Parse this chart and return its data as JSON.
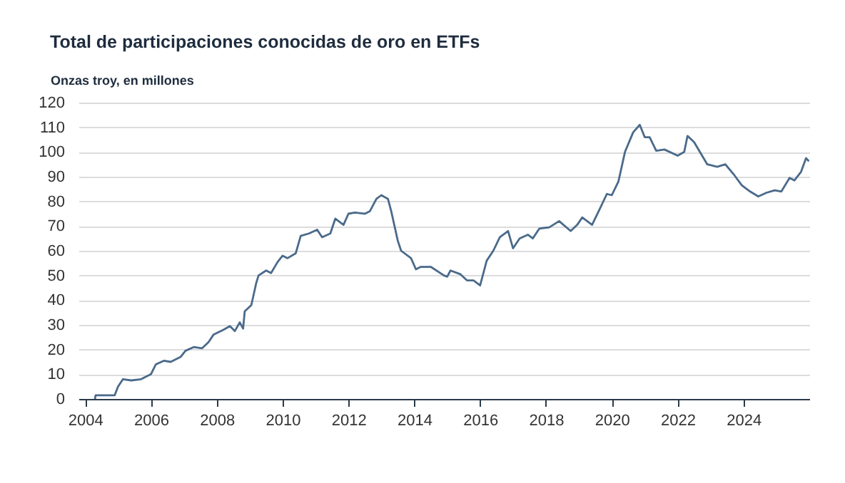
{
  "chart_data": {
    "type": "line",
    "title": "Total de participaciones conocidas de oro en ETFs",
    "ylabel": "Onzas troy, en millones",
    "xlim": [
      2003.8,
      2026
    ],
    "xticks": [
      2004,
      2006,
      2008,
      2010,
      2012,
      2014,
      2016,
      2018,
      2020,
      2022,
      2024
    ],
    "ylim": [
      0,
      120
    ],
    "yticks": [
      0,
      10,
      20,
      30,
      40,
      50,
      60,
      70,
      80,
      90,
      100,
      110,
      120
    ],
    "grid": "y",
    "series": [
      {
        "color": "#4a6a8a",
        "x": [
          2004.3,
          2004.32,
          2004.9,
          2005.0,
          2005.15,
          2005.4,
          2005.7,
          2006.0,
          2006.15,
          2006.4,
          2006.6,
          2006.9,
          2007.05,
          2007.3,
          2007.55,
          2007.75,
          2007.9,
          2008.2,
          2008.4,
          2008.55,
          2008.7,
          2008.8,
          2008.85,
          2009.05,
          2009.2,
          2009.27,
          2009.5,
          2009.65,
          2009.85,
          2010.0,
          2010.15,
          2010.4,
          2010.55,
          2010.8,
          2011.05,
          2011.2,
          2011.45,
          2011.6,
          2011.85,
          2012.0,
          2012.2,
          2012.5,
          2012.65,
          2012.85,
          2013.0,
          2013.2,
          2013.3,
          2013.5,
          2013.6,
          2013.9,
          2014.05,
          2014.2,
          2014.5,
          2014.9,
          2015.0,
          2015.1,
          2015.4,
          2015.6,
          2015.8,
          2016.0,
          2016.2,
          2016.4,
          2016.6,
          2016.85,
          2017.0,
          2017.2,
          2017.45,
          2017.6,
          2017.8,
          2018.1,
          2018.4,
          2018.75,
          2018.95,
          2019.1,
          2019.4,
          2019.6,
          2019.85,
          2020.0,
          2020.2,
          2020.4,
          2020.65,
          2020.85,
          2021.0,
          2021.15,
          2021.35,
          2021.6,
          2022.0,
          2022.2,
          2022.3,
          2022.5,
          2022.9,
          2023.2,
          2023.45,
          2023.7,
          2023.95,
          2024.2,
          2024.45,
          2024.7,
          2024.95,
          2025.15,
          2025.4,
          2025.55,
          2025.75,
          2025.9,
          2025.97
        ],
        "values": [
          0,
          1.5,
          1.5,
          5,
          8,
          7.5,
          8,
          10,
          14,
          15.5,
          15,
          17,
          19.5,
          21,
          20.5,
          23,
          26,
          28,
          29.5,
          27.5,
          31,
          28.5,
          35.5,
          38,
          47,
          50,
          52,
          51,
          55.5,
          58,
          57,
          59,
          66,
          67,
          68.5,
          65.5,
          67,
          73,
          70.5,
          75,
          75.5,
          75,
          76,
          81,
          82.5,
          81,
          76,
          64,
          60,
          57,
          52.5,
          53.5,
          53.5,
          50,
          49.5,
          52,
          50.5,
          48,
          48,
          46,
          56,
          60,
          65.5,
          68,
          61,
          65,
          66.5,
          65,
          69,
          69.5,
          72,
          68,
          70.5,
          73.5,
          70.5,
          76,
          83,
          82.5,
          88,
          100,
          108,
          111,
          106,
          106,
          100.5,
          101,
          98.5,
          100,
          106.5,
          104,
          95,
          94,
          95,
          91,
          86.5,
          84,
          82,
          83.5,
          84.5,
          84,
          89.5,
          88.5,
          92,
          97.5,
          96.5
        ]
      }
    ]
  }
}
